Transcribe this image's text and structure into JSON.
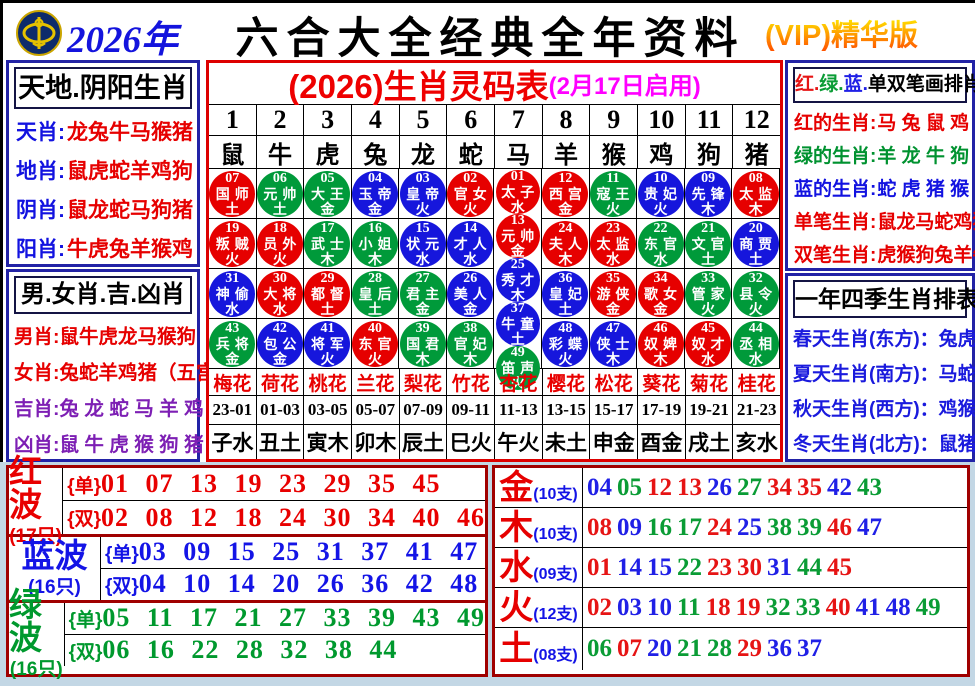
{
  "header": {
    "year": "2026年",
    "title": "六合大全经典全年资料",
    "vip": "(VIP)精华版"
  },
  "left_top": {
    "title": "天地.阴阳生肖",
    "rows": [
      {
        "label": "天肖:",
        "value": "龙兔牛马猴猪"
      },
      {
        "label": "地肖:",
        "value": "鼠虎蛇羊鸡狗"
      },
      {
        "label": "阴肖:",
        "value": "鼠龙蛇马狗猪"
      },
      {
        "label": "阳肖:",
        "value": "牛虎兔羊猴鸡"
      }
    ]
  },
  "left_bottom": {
    "title": "男.女肖.吉.凶肖",
    "rows": [
      {
        "label": "男肖:",
        "value": "鼠牛虎龙马猴狗"
      },
      {
        "label": "女肖:",
        "value": "兔蛇羊鸡猪（五宫）"
      },
      {
        "label": "吉肖:",
        "value": "兔 龙 蛇 马 羊 鸡"
      },
      {
        "label": "凶肖:",
        "value": "鼠 牛 虎 猴 狗 猪"
      }
    ]
  },
  "center": {
    "title_main": "(2026)生肖灵码表",
    "title_sub": "(2月17日启用)",
    "numbers": [
      "1",
      "2",
      "3",
      "4",
      "5",
      "6",
      "7",
      "8",
      "9",
      "10",
      "11",
      "12"
    ],
    "animals": [
      "鼠",
      "牛",
      "虎",
      "兔",
      "龙",
      "蛇",
      "马",
      "羊",
      "猴",
      "鸡",
      "狗",
      "猪"
    ],
    "circles": [
      {
        "n": "07",
        "t": "国师",
        "e": "土",
        "c": "red"
      },
      {
        "n": "06",
        "t": "元帅",
        "e": "土",
        "c": "green"
      },
      {
        "n": "05",
        "t": "大王",
        "e": "金",
        "c": "green"
      },
      {
        "n": "04",
        "t": "玉帝",
        "e": "金",
        "c": "blue"
      },
      {
        "n": "03",
        "t": "皇帝",
        "e": "火",
        "c": "blue"
      },
      {
        "n": "02",
        "t": "官女",
        "e": "火",
        "c": "red"
      },
      {
        "n": "12",
        "t": "西宫",
        "e": "金",
        "c": "red"
      },
      {
        "n": "11",
        "t": "寇王",
        "e": "火",
        "c": "green"
      },
      {
        "n": "10",
        "t": "贵妃",
        "e": "火",
        "c": "blue"
      },
      {
        "n": "09",
        "t": "先锋",
        "e": "木",
        "c": "blue"
      },
      {
        "n": "08",
        "t": "太监",
        "e": "木",
        "c": "red"
      },
      {
        "n": "19",
        "t": "叛贼",
        "e": "火",
        "c": "red"
      },
      {
        "n": "18",
        "t": "员外",
        "e": "火",
        "c": "red"
      },
      {
        "n": "17",
        "t": "武士",
        "e": "木",
        "c": "green"
      },
      {
        "n": "16",
        "t": "小姐",
        "e": "木",
        "c": "green"
      },
      {
        "n": "15",
        "t": "状元",
        "e": "水",
        "c": "blue"
      },
      {
        "n": "14",
        "t": "才人",
        "e": "水",
        "c": "blue"
      },
      {
        "n": "24",
        "t": "夫人",
        "e": "木",
        "c": "red"
      },
      {
        "n": "23",
        "t": "太监",
        "e": "水",
        "c": "red"
      },
      {
        "n": "22",
        "t": "东官",
        "e": "水",
        "c": "green"
      },
      {
        "n": "21",
        "t": "文官",
        "e": "土",
        "c": "green"
      },
      {
        "n": "20",
        "t": "商贾",
        "e": "土",
        "c": "blue"
      },
      {
        "n": "31",
        "t": "神偷",
        "e": "水",
        "c": "blue"
      },
      {
        "n": "30",
        "t": "大将",
        "e": "水",
        "c": "red"
      },
      {
        "n": "29",
        "t": "都督",
        "e": "土",
        "c": "red"
      },
      {
        "n": "28",
        "t": "皇后",
        "e": "土",
        "c": "green"
      },
      {
        "n": "27",
        "t": "君主",
        "e": "金",
        "c": "green"
      },
      {
        "n": "26",
        "t": "美人",
        "e": "金",
        "c": "blue"
      },
      {
        "n": "36",
        "t": "皇妃",
        "e": "土",
        "c": "blue"
      },
      {
        "n": "35",
        "t": "游侠",
        "e": "金",
        "c": "red"
      },
      {
        "n": "34",
        "t": "歌女",
        "e": "金",
        "c": "red"
      },
      {
        "n": "33",
        "t": "管家",
        "e": "火",
        "c": "green"
      },
      {
        "n": "32",
        "t": "县令",
        "e": "火",
        "c": "green"
      },
      {
        "n": "43",
        "t": "兵将",
        "e": "金",
        "c": "green"
      },
      {
        "n": "42",
        "t": "包公",
        "e": "金",
        "c": "blue"
      },
      {
        "n": "41",
        "t": "将军",
        "e": "火",
        "c": "blue"
      },
      {
        "n": "40",
        "t": "东官",
        "e": "火",
        "c": "red"
      },
      {
        "n": "39",
        "t": "国君",
        "e": "木",
        "c": "green"
      },
      {
        "n": "38",
        "t": "官妃",
        "e": "木",
        "c": "green"
      },
      {
        "n": "48",
        "t": "彩蝶",
        "e": "火",
        "c": "blue"
      },
      {
        "n": "47",
        "t": "侠士",
        "e": "木",
        "c": "blue"
      },
      {
        "n": "46",
        "t": "奴婢",
        "e": "木",
        "c": "red"
      },
      {
        "n": "45",
        "t": "奴才",
        "e": "水",
        "c": "red"
      },
      {
        "n": "44",
        "t": "丞相",
        "e": "水",
        "c": "green"
      }
    ],
    "middle": [
      {
        "n": "01",
        "t": "太子",
        "e": "水",
        "c": "red"
      },
      {
        "n": "13",
        "t": "元帅",
        "e": "金",
        "c": "red"
      },
      {
        "n": "25",
        "t": "秀才",
        "e": "木",
        "c": "blue"
      },
      {
        "n": "37",
        "t": "牛童",
        "e": "土",
        "c": "blue"
      },
      {
        "n": "49",
        "t": "笛声",
        "e": "火",
        "c": "green"
      }
    ],
    "flowers": [
      "梅花",
      "荷花",
      "桃花",
      "兰花",
      "梨花",
      "竹花",
      "杏花",
      "樱花",
      "松花",
      "葵花",
      "菊花",
      "桂花"
    ],
    "times": [
      "23-01",
      "01-03",
      "03-05",
      "05-07",
      "07-09",
      "09-11",
      "11-13",
      "13-15",
      "15-17",
      "17-19",
      "19-21",
      "21-23"
    ],
    "branches": [
      "子水",
      "丑土",
      "寅木",
      "卯木",
      "辰土",
      "巳火",
      "午火",
      "未土",
      "申金",
      "酉金",
      "戌土",
      "亥水"
    ]
  },
  "right_top": {
    "title_parts": [
      {
        "v": "红.",
        "c": "red"
      },
      {
        "v": "绿.",
        "c": "green"
      },
      {
        "v": "蓝.",
        "c": "blue"
      },
      {
        "v": "单双笔画排肖表",
        "c": "black"
      }
    ],
    "rows": [
      {
        "label": "红的生肖:",
        "value": "马 兔 鼠 鸡"
      },
      {
        "label": "绿的生肖:",
        "value": "羊 龙 牛 狗"
      },
      {
        "label": "蓝的生肖:",
        "value": "蛇 虎 猪 猴"
      },
      {
        "label": "单笔生肖:",
        "value": "鼠龙马蛇鸡猪"
      },
      {
        "label": "双笔生肖:",
        "value": "虎猴狗兔羊牛"
      }
    ]
  },
  "right_bottom": {
    "title": "一年四季生肖排表",
    "rows": [
      {
        "label": "春天生肖(东方)：",
        "value": "兔虎龙"
      },
      {
        "label": "夏天生肖(南方)：",
        "value": "马蛇羊"
      },
      {
        "label": "秋天生肖(西方)：",
        "value": "鸡猴狗"
      },
      {
        "label": "冬天生肖(北方)：",
        "value": "鼠猪牛"
      }
    ]
  },
  "waves": [
    {
      "name": "红波",
      "count": "(17只)",
      "odd_tag": "{单}",
      "odd": "01 07 13 19 23 29 35 45",
      "even_tag": "{双}",
      "even": "02 08 12 18 24 30 34 40 46"
    },
    {
      "name": "蓝波",
      "count": "(16只)",
      "odd_tag": "{单}",
      "odd": "03 09 15 25 31 37 41 47",
      "even_tag": "{双}",
      "even": "04 10 14 20 26 36 42 48"
    },
    {
      "name": "绿波",
      "count": "(16只)",
      "odd_tag": "{单}",
      "odd": "05 11 17 21 27 33 39 43 49",
      "even_tag": "{双}",
      "even": "06 16 22 28 32 38 44"
    }
  ],
  "elements": [
    {
      "name": "金",
      "count": "(10支)",
      "numbers": [
        {
          "v": "04",
          "c": "blue"
        },
        {
          "v": "05",
          "c": "green"
        },
        {
          "v": "12",
          "c": "red"
        },
        {
          "v": "13",
          "c": "red"
        },
        {
          "v": "26",
          "c": "blue"
        },
        {
          "v": "27",
          "c": "green"
        },
        {
          "v": "34",
          "c": "red"
        },
        {
          "v": "35",
          "c": "red"
        },
        {
          "v": "42",
          "c": "blue"
        },
        {
          "v": "43",
          "c": "green"
        }
      ]
    },
    {
      "name": "木",
      "count": "(10支)",
      "numbers": [
        {
          "v": "08",
          "c": "red"
        },
        {
          "v": "09",
          "c": "blue"
        },
        {
          "v": "16",
          "c": "green"
        },
        {
          "v": "17",
          "c": "green"
        },
        {
          "v": "24",
          "c": "red"
        },
        {
          "v": "25",
          "c": "blue"
        },
        {
          "v": "38",
          "c": "green"
        },
        {
          "v": "39",
          "c": "green"
        },
        {
          "v": "46",
          "c": "red"
        },
        {
          "v": "47",
          "c": "blue"
        }
      ]
    },
    {
      "name": "水",
      "count": "(09支)",
      "numbers": [
        {
          "v": "01",
          "c": "red"
        },
        {
          "v": "14",
          "c": "blue"
        },
        {
          "v": "15",
          "c": "blue"
        },
        {
          "v": "22",
          "c": "green"
        },
        {
          "v": "23",
          "c": "red"
        },
        {
          "v": "30",
          "c": "red"
        },
        {
          "v": "31",
          "c": "blue"
        },
        {
          "v": "44",
          "c": "green"
        },
        {
          "v": "45",
          "c": "red"
        }
      ]
    },
    {
      "name": "火",
      "count": "(12支)",
      "numbers": [
        {
          "v": "02",
          "c": "red"
        },
        {
          "v": "03",
          "c": "blue"
        },
        {
          "v": "10",
          "c": "blue"
        },
        {
          "v": "11",
          "c": "green"
        },
        {
          "v": "18",
          "c": "red"
        },
        {
          "v": "19",
          "c": "red"
        },
        {
          "v": "32",
          "c": "green"
        },
        {
          "v": "33",
          "c": "green"
        },
        {
          "v": "40",
          "c": "red"
        },
        {
          "v": "41",
          "c": "blue"
        },
        {
          "v": "48",
          "c": "blue"
        },
        {
          "v": "49",
          "c": "green"
        }
      ]
    },
    {
      "name": "土",
      "count": "(08支)",
      "numbers": [
        {
          "v": "06",
          "c": "green"
        },
        {
          "v": "07",
          "c": "red"
        },
        {
          "v": "20",
          "c": "blue"
        },
        {
          "v": "21",
          "c": "green"
        },
        {
          "v": "28",
          "c": "green"
        },
        {
          "v": "29",
          "c": "red"
        },
        {
          "v": "36",
          "c": "blue"
        },
        {
          "v": "37",
          "c": "blue"
        }
      ]
    }
  ]
}
